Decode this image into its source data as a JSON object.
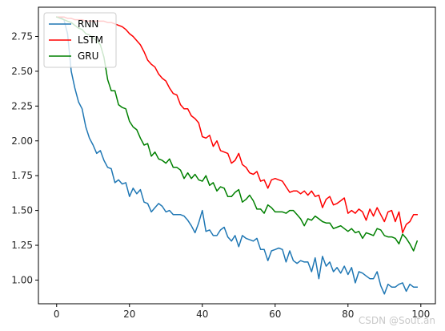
{
  "chart_data": {
    "type": "line",
    "title": "",
    "xlabel": "",
    "ylabel": "",
    "xlim": [
      -5,
      104
    ],
    "ylim": [
      0.83,
      2.96
    ],
    "xticks": [
      0,
      20,
      40,
      60,
      80,
      100
    ],
    "yticks": [
      1.0,
      1.25,
      1.5,
      1.75,
      2.0,
      2.25,
      2.5,
      2.75
    ],
    "xtick_labels": [
      "0",
      "20",
      "40",
      "60",
      "80",
      "100"
    ],
    "ytick_labels": [
      "1.00",
      "1.25",
      "1.50",
      "1.75",
      "2.00",
      "2.25",
      "2.50",
      "2.75"
    ],
    "grid": false,
    "legend_position": "top-left",
    "series": [
      {
        "name": "RNN",
        "color": "#1f77b4",
        "x": [
          0,
          1,
          2,
          3,
          4,
          5,
          6,
          7,
          8,
          9,
          10,
          11,
          12,
          13,
          14,
          15,
          16,
          17,
          18,
          19,
          20,
          21,
          22,
          23,
          24,
          25,
          26,
          27,
          28,
          29,
          30,
          31,
          32,
          33,
          34,
          35,
          36,
          37,
          38,
          39,
          40,
          41,
          42,
          43,
          44,
          45,
          46,
          47,
          48,
          49,
          50,
          51,
          52,
          53,
          54,
          55,
          56,
          57,
          58,
          59,
          60,
          61,
          62,
          63,
          64,
          65,
          66,
          67,
          68,
          69,
          70,
          71,
          72,
          73,
          74,
          75,
          76,
          77,
          78,
          79,
          80,
          81,
          82,
          83,
          84,
          85,
          86,
          87,
          88,
          89,
          90,
          91,
          92,
          93,
          94,
          95,
          96,
          97,
          98,
          99
        ],
        "y": [
          2.89,
          2.89,
          2.87,
          2.77,
          2.5,
          2.38,
          2.28,
          2.23,
          2.1,
          2.02,
          1.97,
          1.91,
          1.93,
          1.86,
          1.81,
          1.8,
          1.7,
          1.72,
          1.69,
          1.7,
          1.6,
          1.66,
          1.62,
          1.65,
          1.56,
          1.55,
          1.49,
          1.52,
          1.55,
          1.53,
          1.49,
          1.5,
          1.47,
          1.47,
          1.47,
          1.46,
          1.43,
          1.39,
          1.34,
          1.41,
          1.5,
          1.35,
          1.36,
          1.32,
          1.32,
          1.36,
          1.38,
          1.31,
          1.28,
          1.32,
          1.24,
          1.32,
          1.3,
          1.29,
          1.28,
          1.3,
          1.22,
          1.22,
          1.14,
          1.21,
          1.22,
          1.23,
          1.22,
          1.13,
          1.21,
          1.14,
          1.12,
          1.14,
          1.13,
          1.13,
          1.06,
          1.16,
          1.01,
          1.17,
          1.1,
          1.13,
          1.06,
          1.09,
          1.05,
          1.1,
          1.04,
          1.09,
          0.98,
          1.06,
          1.05,
          1.03,
          1.01,
          1.01,
          1.06,
          0.96,
          0.9,
          0.97,
          0.95,
          0.95,
          0.97,
          0.98,
          0.92,
          0.97,
          0.95,
          0.95
        ]
      },
      {
        "name": "LSTM",
        "color": "#ff0000",
        "x": [
          0,
          1,
          2,
          3,
          4,
          5,
          6,
          7,
          8,
          9,
          10,
          11,
          12,
          13,
          14,
          15,
          16,
          17,
          18,
          19,
          20,
          21,
          22,
          23,
          24,
          25,
          26,
          27,
          28,
          29,
          30,
          31,
          32,
          33,
          34,
          35,
          36,
          37,
          38,
          39,
          40,
          41,
          42,
          43,
          44,
          45,
          46,
          47,
          48,
          49,
          50,
          51,
          52,
          53,
          54,
          55,
          56,
          57,
          58,
          59,
          60,
          61,
          62,
          63,
          64,
          65,
          66,
          67,
          68,
          69,
          70,
          71,
          72,
          73,
          74,
          75,
          76,
          77,
          78,
          79,
          80,
          81,
          82,
          83,
          84,
          85,
          86,
          87,
          88,
          89,
          90,
          91,
          92,
          93,
          94,
          95,
          96,
          97,
          98,
          99
        ],
        "y": [
          2.89,
          2.89,
          2.89,
          2.88,
          2.88,
          2.87,
          2.87,
          2.87,
          2.86,
          2.86,
          2.86,
          2.86,
          2.86,
          2.86,
          2.85,
          2.85,
          2.84,
          2.83,
          2.82,
          2.8,
          2.77,
          2.75,
          2.72,
          2.69,
          2.64,
          2.58,
          2.55,
          2.53,
          2.48,
          2.45,
          2.43,
          2.38,
          2.34,
          2.33,
          2.26,
          2.23,
          2.23,
          2.18,
          2.16,
          2.13,
          2.03,
          2.02,
          2.04,
          1.96,
          2.0,
          1.93,
          1.92,
          1.91,
          1.84,
          1.86,
          1.91,
          1.83,
          1.81,
          1.77,
          1.76,
          1.78,
          1.71,
          1.72,
          1.66,
          1.72,
          1.73,
          1.72,
          1.71,
          1.67,
          1.63,
          1.64,
          1.64,
          1.62,
          1.64,
          1.61,
          1.64,
          1.6,
          1.61,
          1.52,
          1.58,
          1.6,
          1.54,
          1.55,
          1.57,
          1.59,
          1.48,
          1.5,
          1.48,
          1.51,
          1.49,
          1.43,
          1.51,
          1.46,
          1.52,
          1.47,
          1.42,
          1.49,
          1.5,
          1.42,
          1.49,
          1.34,
          1.4,
          1.42,
          1.47,
          1.47
        ]
      },
      {
        "name": "GRU",
        "color": "#008000",
        "x": [
          0,
          1,
          2,
          3,
          4,
          5,
          6,
          7,
          8,
          9,
          10,
          11,
          12,
          13,
          14,
          15,
          16,
          17,
          18,
          19,
          20,
          21,
          22,
          23,
          24,
          25,
          26,
          27,
          28,
          29,
          30,
          31,
          32,
          33,
          34,
          35,
          36,
          37,
          38,
          39,
          40,
          41,
          42,
          43,
          44,
          45,
          46,
          47,
          48,
          49,
          50,
          51,
          52,
          53,
          54,
          55,
          56,
          57,
          58,
          59,
          60,
          61,
          62,
          63,
          64,
          65,
          66,
          67,
          68,
          69,
          70,
          71,
          72,
          73,
          74,
          75,
          76,
          77,
          78,
          79,
          80,
          81,
          82,
          83,
          84,
          85,
          86,
          87,
          88,
          89,
          90,
          91,
          92,
          93,
          94,
          95,
          96,
          97,
          98,
          99
        ],
        "y": [
          2.89,
          2.88,
          2.87,
          2.86,
          2.85,
          2.83,
          2.81,
          2.8,
          2.77,
          2.76,
          2.74,
          2.72,
          2.69,
          2.6,
          2.44,
          2.36,
          2.36,
          2.26,
          2.24,
          2.23,
          2.14,
          2.1,
          2.08,
          2.02,
          1.97,
          1.98,
          1.89,
          1.92,
          1.87,
          1.86,
          1.84,
          1.87,
          1.81,
          1.81,
          1.79,
          1.73,
          1.77,
          1.73,
          1.76,
          1.72,
          1.71,
          1.75,
          1.68,
          1.7,
          1.64,
          1.67,
          1.66,
          1.6,
          1.6,
          1.63,
          1.65,
          1.56,
          1.58,
          1.61,
          1.57,
          1.51,
          1.51,
          1.48,
          1.54,
          1.52,
          1.49,
          1.49,
          1.49,
          1.48,
          1.5,
          1.5,
          1.47,
          1.44,
          1.39,
          1.44,
          1.43,
          1.46,
          1.44,
          1.42,
          1.41,
          1.41,
          1.37,
          1.38,
          1.39,
          1.37,
          1.35,
          1.37,
          1.34,
          1.35,
          1.3,
          1.34,
          1.33,
          1.32,
          1.37,
          1.36,
          1.32,
          1.31,
          1.31,
          1.3,
          1.26,
          1.33,
          1.3,
          1.26,
          1.21,
          1.28
        ]
      }
    ]
  },
  "watermark": "CSDN @Sout.an"
}
